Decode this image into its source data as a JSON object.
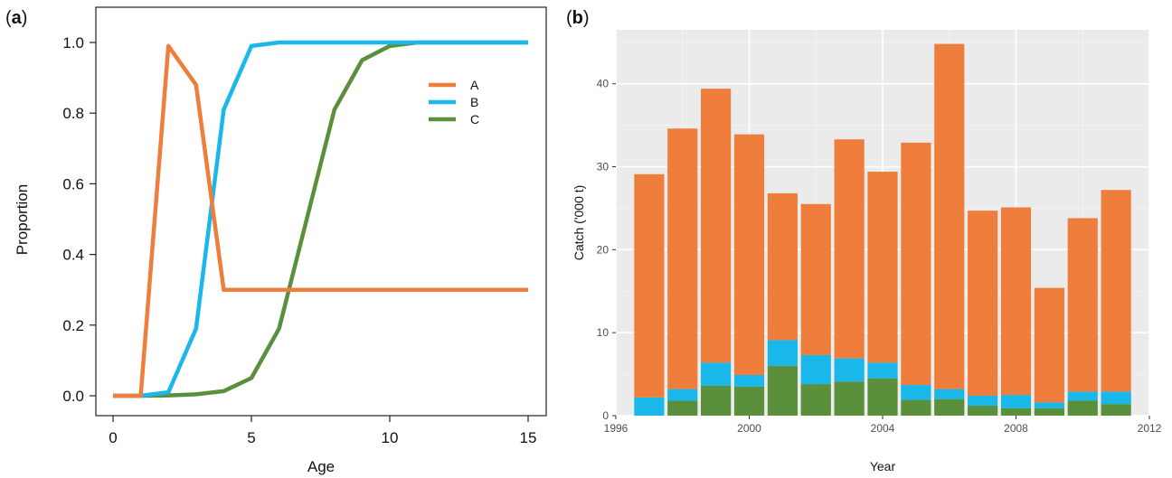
{
  "panels": {
    "a_label": "a",
    "b_label": "b"
  },
  "chart_data": [
    {
      "type": "line",
      "panel": "a",
      "xlabel": "Age",
      "ylabel": "Proportion",
      "xlim": [
        0,
        15
      ],
      "ylim": [
        0,
        1
      ],
      "xticks": [
        "0",
        "5",
        "10",
        "15"
      ],
      "yticks": [
        "0.0",
        "0.2",
        "0.4",
        "0.6",
        "0.8",
        "1.0"
      ],
      "grid": false,
      "legend_position": "top-right",
      "series": [
        {
          "name": "A",
          "color": "#ef7e3c",
          "x": [
            0,
            1,
            2,
            3,
            4,
            5,
            6,
            7,
            8,
            9,
            10,
            11,
            12,
            13,
            14,
            15
          ],
          "y": [
            0,
            0,
            0.99,
            0.88,
            0.3,
            0.3,
            0.3,
            0.3,
            0.3,
            0.3,
            0.3,
            0.3,
            0.3,
            0.3,
            0.3,
            0.3
          ]
        },
        {
          "name": "B",
          "color": "#1ab7ea",
          "x": [
            0,
            1,
            2,
            3,
            4,
            5,
            6,
            7,
            8,
            9,
            10,
            11,
            12,
            13,
            14,
            15
          ],
          "y": [
            0,
            0,
            0.01,
            0.19,
            0.81,
            0.99,
            1.0,
            1.0,
            1.0,
            1.0,
            1.0,
            1.0,
            1.0,
            1.0,
            1.0,
            1.0
          ]
        },
        {
          "name": "C",
          "color": "#5a8f3c",
          "x": [
            0,
            1,
            2,
            3,
            4,
            5,
            6,
            7,
            8,
            9,
            10,
            11,
            12,
            13,
            14,
            15
          ],
          "y": [
            0,
            0,
            0.001,
            0.004,
            0.013,
            0.05,
            0.19,
            0.5,
            0.81,
            0.95,
            0.99,
            1.0,
            1.0,
            1.0,
            1.0,
            1.0
          ]
        }
      ]
    },
    {
      "type": "bar",
      "panel": "b",
      "stacked": true,
      "xlabel": "Year",
      "ylabel": "Catch ('000 t)",
      "xlim": [
        1996,
        2012
      ],
      "ylim": [
        0,
        46.5
      ],
      "xticks": [
        "1996",
        "2000",
        "2004",
        "2008",
        "2012"
      ],
      "yticks": [
        "0",
        "10",
        "20",
        "30",
        "40"
      ],
      "grid": true,
      "background": "#ebebeb",
      "categories": [
        1997,
        1998,
        1999,
        2000,
        2001,
        2002,
        2003,
        2004,
        2005,
        2006,
        2007,
        2008,
        2009,
        2010,
        2011
      ],
      "series": [
        {
          "color": "#5a8f3c",
          "values": [
            0,
            1.8,
            3.6,
            3.5,
            6.0,
            3.8,
            4.1,
            4.5,
            1.9,
            2.0,
            1.2,
            0.9,
            0.9,
            1.8,
            1.4
          ]
        },
        {
          "color": "#1ab7ea",
          "values": [
            2.2,
            1.4,
            2.8,
            1.4,
            3.1,
            3.5,
            2.8,
            1.9,
            1.8,
            1.2,
            1.2,
            1.6,
            0.7,
            1.1,
            1.5
          ]
        },
        {
          "color": "#ef7e3c",
          "values": [
            26.9,
            31.4,
            33.0,
            29.0,
            17.7,
            18.2,
            26.4,
            23.0,
            29.2,
            41.6,
            22.3,
            22.6,
            13.8,
            20.9,
            24.3
          ]
        }
      ]
    }
  ]
}
